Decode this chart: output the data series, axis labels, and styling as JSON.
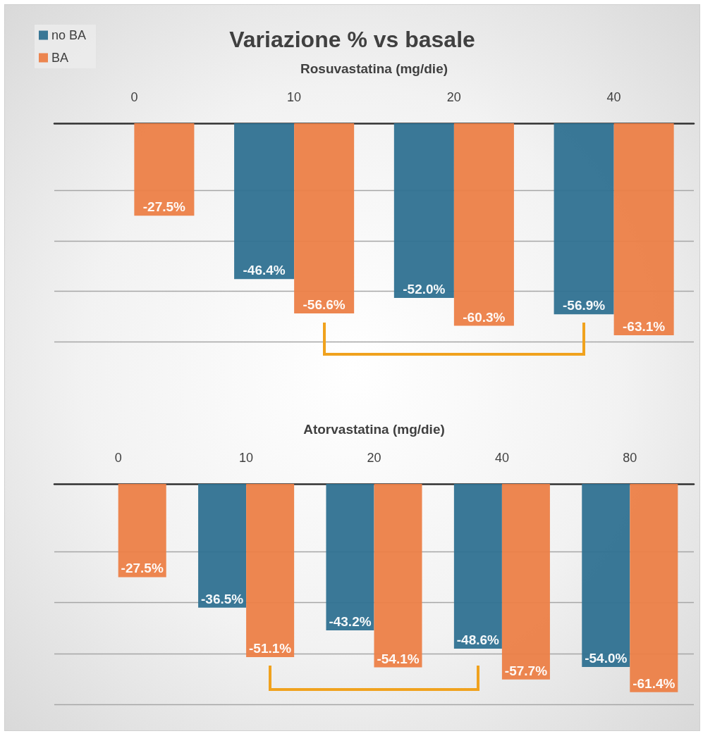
{
  "chart_data": [
    {
      "type": "bar",
      "title": "Variazione % vs basale",
      "xlabel": "Rosuvastatina (mg/die)",
      "categories": [
        "0",
        "10",
        "20",
        "40"
      ],
      "series": [
        {
          "name": "no BA",
          "color": "#2f7191",
          "values": [
            null,
            -46.4,
            -52.0,
            -56.9
          ],
          "value_labels": [
            null,
            "-46.4%",
            "-52.0%",
            "-56.9%"
          ]
        },
        {
          "name": "BA",
          "color": "#ec7f47",
          "values": [
            -27.5,
            -56.6,
            -60.3,
            -63.1
          ],
          "value_labels": [
            "-27.5%",
            "-56.6%",
            "-60.3%",
            "-63.1%"
          ]
        }
      ],
      "ylim": [
        -65,
        0
      ],
      "yticks": [
        {
          "value": -65,
          "label": null
        },
        {
          "value": -50,
          "label": null
        },
        {
          "value": -35,
          "label": null
        },
        {
          "value": -20,
          "label": null
        }
      ],
      "tick_labels": "x",
      "grid": "y",
      "legend": "top left"
    },
    {
      "type": "bar",
      "xlabel": "Atorvastatina (mg/die)",
      "categories": [
        "0",
        "10",
        "20",
        "40",
        "80"
      ],
      "series": [
        {
          "color": "#2f7191",
          "values": [
            null,
            -36.5,
            -43.2,
            -48.6,
            -54.0
          ],
          "value_labels": [
            null,
            "-36.5%",
            "-43.2%",
            "-48.6%",
            "-54.0%"
          ]
        },
        {
          "color": "#ec7f47",
          "values": [
            -27.5,
            -51.1,
            -54.1,
            -57.7,
            -61.4
          ],
          "value_labels": [
            "-27.5%",
            "-51.1%",
            "-54.1%",
            "-57.7%",
            "-61.4%"
          ]
        }
      ],
      "ylim": [
        -65,
        0
      ],
      "yticks": [
        {
          "value": -65,
          "label": null
        },
        {
          "value": -50,
          "label": null
        },
        {
          "value": -35,
          "label": null
        },
        {
          "value": -20,
          "label": null
        }
      ],
      "tick_labels": "x",
      "grid": "y"
    }
  ]
}
